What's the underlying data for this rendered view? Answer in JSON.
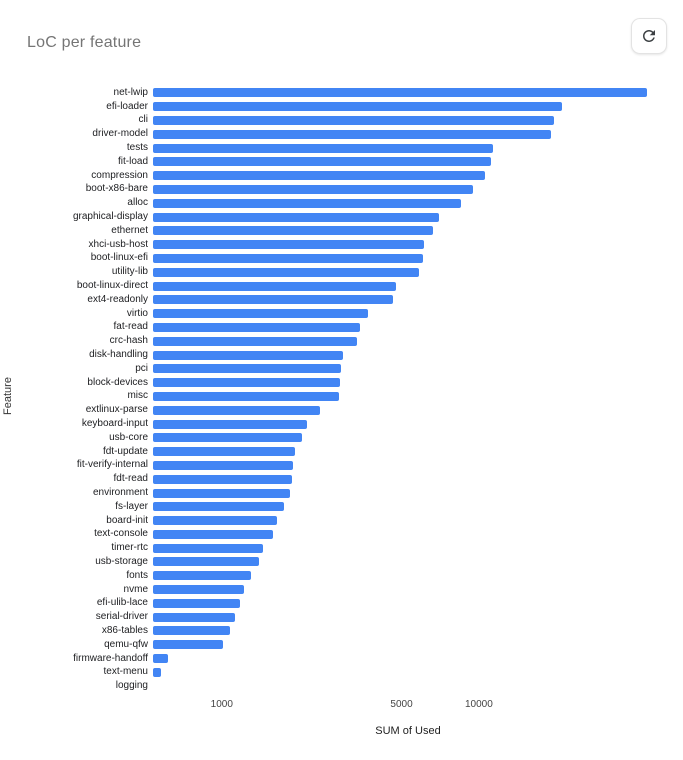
{
  "header": {
    "title": "LoC per feature",
    "refresh_icon": "refresh-icon"
  },
  "chart_data": {
    "type": "bar",
    "orientation": "horizontal",
    "title": "LoC per feature",
    "xlabel": "SUM of Used",
    "ylabel": "Feature",
    "x_scale": "log",
    "xlim": [
      540,
      52000
    ],
    "x_ticks": [
      1000,
      5000,
      10000
    ],
    "x_tick_labels": [
      "1000",
      "5000",
      "10000"
    ],
    "grid": false,
    "legend": false,
    "bar_color": "#4285F4",
    "categories": [
      "net-lwip",
      "efi-loader",
      "cli",
      "driver-model",
      "tests",
      "fit-load",
      "compression",
      "boot-x86-bare",
      "alloc",
      "graphical-display",
      "ethernet",
      "xhci-usb-host",
      "boot-linux-efi",
      "utility-lib",
      "boot-linux-direct",
      "ext4-readonly",
      "virtio",
      "fat-read",
      "crc-hash",
      "disk-handling",
      "pci",
      "block-devices",
      "misc",
      "extlinux-parse",
      "keyboard-input",
      "usb-core",
      "fdt-update",
      "fit-verify-internal",
      "fdt-read",
      "environment",
      "fs-layer",
      "board-init",
      "text-console",
      "timer-rtc",
      "usb-storage",
      "fonts",
      "nvme",
      "efi-ulib-lace",
      "serial-driver",
      "x86-tables",
      "qemu-qfw",
      "firmware-handoff",
      "text-menu",
      "logging"
    ],
    "values": [
      45000,
      21000,
      19500,
      19000,
      11300,
      11100,
      10600,
      9500,
      8500,
      7000,
      6600,
      6100,
      6050,
      5850,
      4750,
      4650,
      3700,
      3450,
      3350,
      2950,
      2900,
      2870,
      2850,
      2400,
      2150,
      2050,
      1920,
      1900,
      1870,
      1850,
      1750,
      1640,
      1580,
      1450,
      1400,
      1300,
      1220,
      1180,
      1130,
      1080,
      1010,
      620,
      580,
      0
    ]
  }
}
